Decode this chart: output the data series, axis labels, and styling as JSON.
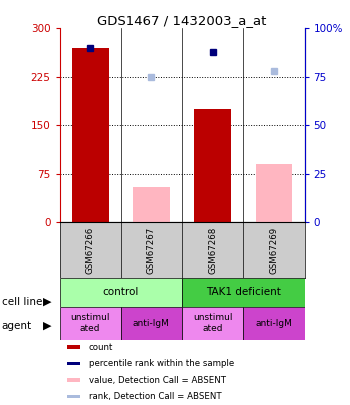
{
  "title": "GDS1467 / 1432003_a_at",
  "samples": [
    "GSM67266",
    "GSM67267",
    "GSM67268",
    "GSM67269"
  ],
  "count_values": [
    270,
    null,
    175,
    null
  ],
  "count_absent_values": [
    null,
    55,
    null,
    90
  ],
  "percentile_values": [
    90,
    null,
    88,
    null
  ],
  "percentile_absent_values": [
    null,
    75,
    null,
    78
  ],
  "ylim_left": [
    0,
    300
  ],
  "ylim_right": [
    0,
    100
  ],
  "yticks_left": [
    0,
    75,
    150,
    225,
    300
  ],
  "ytick_labels_left": [
    "0",
    "75",
    "150",
    "225",
    "300"
  ],
  "yticks_right": [
    0,
    25,
    50,
    75,
    100
  ],
  "ytick_labels_right": [
    "0",
    "25",
    "50",
    "75",
    "100%"
  ],
  "cell_line_labels": [
    "control",
    "TAK1 deficient"
  ],
  "cell_line_spans": [
    [
      0,
      2
    ],
    [
      2,
      4
    ]
  ],
  "cell_line_colors": [
    "#aaffaa",
    "#44cc44"
  ],
  "agent_labels": [
    "unstimul\nated",
    "anti-IgM",
    "unstimul\nated",
    "anti-IgM"
  ],
  "agent_bg_colors": [
    "#ee88ee",
    "#cc44cc",
    "#ee88ee",
    "#cc44cc"
  ],
  "bar_color_red": "#bb0000",
  "bar_color_pink": "#ffb6c1",
  "dot_color_blue": "#00007b",
  "dot_color_lightblue": "#aabbdd",
  "sample_box_color": "#cccccc",
  "background_color": "#ffffff"
}
